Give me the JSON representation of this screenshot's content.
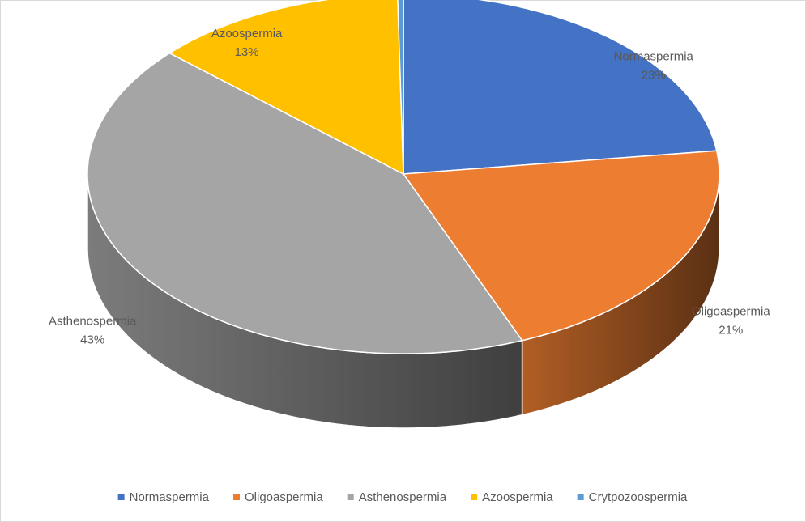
{
  "chart_data": {
    "type": "pie3d",
    "categories": [
      "Normaspermia",
      "Oligoaspermia",
      "Asthenospermia",
      "Azoospermia",
      "Crytpozoospermia"
    ],
    "values": [
      23,
      21,
      43,
      13,
      0.3
    ],
    "value_labels": [
      "23%",
      "21%",
      "43%",
      "13%",
      null
    ],
    "colors": [
      "#4472c4",
      "#ed7d31",
      "#a5a5a5",
      "#ffc000",
      "#5b9bd5"
    ],
    "legend": "bottom"
  }
}
